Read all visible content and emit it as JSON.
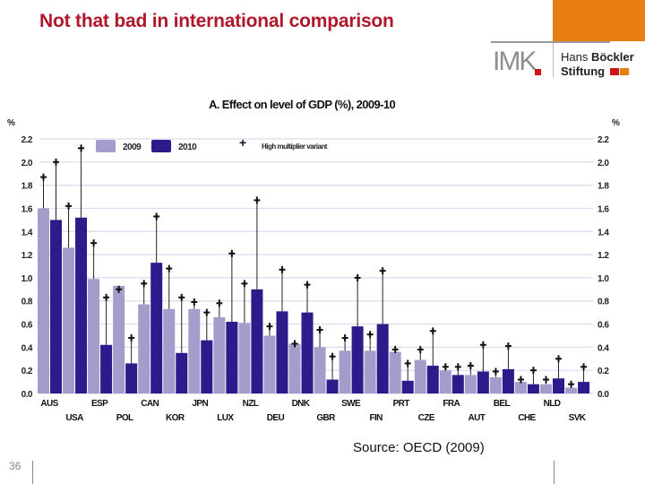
{
  "slide": {
    "title": "Not that bad in international comparison",
    "source": "Source: OECD (2009)",
    "page_number": "36"
  },
  "logo": {
    "imk_text": "IMK",
    "hbs_line1_light": "Hans ",
    "hbs_line1_bold": "Böckler",
    "hbs_line2": "Stiftung",
    "colors": {
      "orange": "#e87d12",
      "red": "#d0121b",
      "gray": "#8f8f8f"
    }
  },
  "chart_data": {
    "type": "bar",
    "title": "A. Effect on level of GDP (%), 2009-10",
    "ylabel_left": "%",
    "ylabel_right": "%",
    "xlabel": "",
    "ylim": [
      0,
      2.2
    ],
    "yticks": [
      "0.0",
      "0.2",
      "0.4",
      "0.6",
      "0.8",
      "1.0",
      "1.2",
      "1.4",
      "1.6",
      "1.8",
      "2.0",
      "2.2"
    ],
    "grid": true,
    "legend": {
      "placement": "top",
      "items": [
        {
          "label": "2009",
          "color": "#a69ccc"
        },
        {
          "label": "2010",
          "color": "#2e1a8a"
        },
        {
          "label": "High multiplier variant",
          "marker": "+"
        }
      ]
    },
    "categories": [
      "AUS",
      "USA",
      "ESP",
      "POL",
      "CAN",
      "KOR",
      "JPN",
      "LUX",
      "NZL",
      "DEU",
      "DNK",
      "GBR",
      "SWE",
      "FIN",
      "PRT",
      "CZE",
      "FRA",
      "AUT",
      "BEL",
      "CHE",
      "NLD",
      "SVK"
    ],
    "series": [
      {
        "name": "2009",
        "color": "#a69ccc",
        "values": [
          1.6,
          1.26,
          0.99,
          0.93,
          0.77,
          0.73,
          0.73,
          0.66,
          0.61,
          0.5,
          0.43,
          0.4,
          0.37,
          0.37,
          0.36,
          0.29,
          0.2,
          0.16,
          0.14,
          0.1,
          0.08,
          0.05
        ]
      },
      {
        "name": "2010",
        "color": "#2e1a8a",
        "values": [
          1.5,
          1.52,
          0.42,
          0.26,
          1.13,
          0.35,
          0.46,
          0.62,
          0.9,
          0.71,
          0.7,
          0.12,
          0.58,
          0.6,
          0.11,
          0.24,
          0.16,
          0.19,
          0.21,
          0.08,
          0.13,
          0.1
        ]
      }
    ],
    "high_multiplier": {
      "name": "High multiplier variant",
      "2009": [
        1.87,
        1.62,
        1.3,
        0.9,
        0.95,
        1.08,
        0.79,
        0.78,
        0.95,
        0.58,
        0.43,
        0.55,
        0.48,
        0.51,
        0.38,
        0.38,
        0.23,
        0.24,
        0.19,
        0.12,
        0.12,
        0.08
      ],
      "2010": [
        2.0,
        2.12,
        0.83,
        0.48,
        1.53,
        0.83,
        0.7,
        1.21,
        1.67,
        1.07,
        0.94,
        0.32,
        1.0,
        1.06,
        0.26,
        0.54,
        0.23,
        0.42,
        0.41,
        0.2,
        0.3,
        0.23
      ]
    }
  }
}
